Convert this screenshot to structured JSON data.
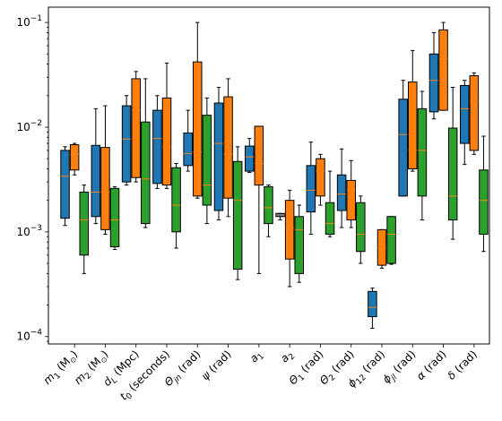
{
  "chart_data": {
    "type": "boxplot",
    "y_scale": "log",
    "ylim": [
      8.5e-05,
      0.14
    ],
    "y_ticks": [
      {
        "value": 0.0001,
        "base": "10",
        "exp": "−4"
      },
      {
        "value": 0.001,
        "base": "10",
        "exp": "−3"
      },
      {
        "value": 0.01,
        "base": "10",
        "exp": "−2"
      },
      {
        "value": 0.1,
        "base": "10",
        "exp": "−1"
      }
    ],
    "series": [
      {
        "color": "#1f77b4"
      },
      {
        "color": "#ff7f0e"
      },
      {
        "color": "#2ca02c"
      }
    ],
    "median_color": "#ff7f0e",
    "categories": [
      {
        "main": "m",
        "sub": "1",
        "unit": " (M",
        "unit_sub": "⊙",
        "unit_end": ")"
      },
      {
        "main": "m",
        "sub": "2",
        "unit": " (M",
        "unit_sub": "⊙",
        "unit_end": ")"
      },
      {
        "main": "d",
        "sub": "L",
        "unit": " (Mpc)",
        "unit_sub": "",
        "unit_end": ""
      },
      {
        "main": "t",
        "sub": "0",
        "unit": " (seconds)",
        "unit_sub": "",
        "unit_end": ""
      },
      {
        "main": "Θ",
        "sub": "jn",
        "unit": " (rad)",
        "unit_sub": "",
        "unit_end": ""
      },
      {
        "main": "ψ",
        "sub": "",
        "unit": " (rad)",
        "unit_sub": "",
        "unit_end": ""
      },
      {
        "main": "a",
        "sub": "1",
        "unit": "",
        "unit_sub": "",
        "unit_end": ""
      },
      {
        "main": "a",
        "sub": "2",
        "unit": "",
        "unit_sub": "",
        "unit_end": ""
      },
      {
        "main": "Θ",
        "sub": "1",
        "unit": " (rad)",
        "unit_sub": "",
        "unit_end": ""
      },
      {
        "main": "Θ",
        "sub": "2",
        "unit": " (rad)",
        "unit_sub": "",
        "unit_end": ""
      },
      {
        "main": "ϕ",
        "sub": "12",
        "unit": " (rad)",
        "unit_sub": "",
        "unit_end": ""
      },
      {
        "main": "ϕ",
        "sub": "jl",
        "unit": " (rad)",
        "unit_sub": "",
        "unit_end": ""
      },
      {
        "main": "α",
        "sub": "",
        "unit": " (rad)",
        "unit_sub": "",
        "unit_end": ""
      },
      {
        "main": "δ",
        "sub": "",
        "unit": " (rad)",
        "unit_sub": "",
        "unit_end": ""
      }
    ],
    "boxes": [
      [
        {
          "min": 0.00115,
          "q1": 0.00135,
          "median": 0.0034,
          "q3": 0.006,
          "max": 0.0065
        },
        {
          "min": 0.0035,
          "q1": 0.0039,
          "median": 0.0055,
          "q3": 0.0068,
          "max": 0.007
        },
        {
          "min": 0.0004,
          "q1": 0.0006,
          "median": 0.0013,
          "q3": 0.0024,
          "max": 0.0028
        }
      ],
      [
        {
          "min": 0.0012,
          "q1": 0.0014,
          "median": 0.0024,
          "q3": 0.0067,
          "max": 0.015
        },
        {
          "min": 0.00095,
          "q1": 0.00105,
          "median": 0.0024,
          "q3": 0.0064,
          "max": 0.016
        },
        {
          "min": 0.00068,
          "q1": 0.00072,
          "median": 0.0013,
          "q3": 0.0026,
          "max": 0.0027
        }
      ],
      [
        {
          "min": 0.0028,
          "q1": 0.003,
          "median": 0.0077,
          "q3": 0.016,
          "max": 0.02
        },
        {
          "min": 0.003,
          "q1": 0.0033,
          "median": 0.0145,
          "q3": 0.029,
          "max": 0.034
        },
        {
          "min": 0.0011,
          "q1": 0.0012,
          "median": 0.0032,
          "q3": 0.0112,
          "max": 0.029
        }
      ],
      [
        {
          "min": 0.0026,
          "q1": 0.0029,
          "median": 0.0078,
          "q3": 0.0145,
          "max": 0.02
        },
        {
          "min": 0.0026,
          "q1": 0.0028,
          "median": 0.0064,
          "q3": 0.019,
          "max": 0.041
        },
        {
          "min": 0.0007,
          "q1": 0.001,
          "median": 0.0018,
          "q3": 0.0041,
          "max": 0.0045
        }
      ],
      [
        {
          "min": 0.0038,
          "q1": 0.0043,
          "median": 0.0056,
          "q3": 0.0088,
          "max": 0.0145
        },
        {
          "min": 0.0021,
          "q1": 0.0022,
          "median": 0.0058,
          "q3": 0.042,
          "max": 0.1
        },
        {
          "min": 0.0012,
          "q1": 0.0018,
          "median": 0.0028,
          "q3": 0.013,
          "max": 0.019
        }
      ],
      [
        {
          "min": 0.0013,
          "q1": 0.0016,
          "median": 0.007,
          "q3": 0.017,
          "max": 0.024
        },
        {
          "min": 0.0014,
          "q1": 0.0021,
          "median": 0.0055,
          "q3": 0.0195,
          "max": 0.029
        },
        {
          "min": 0.00035,
          "q1": 0.00044,
          "median": 0.002,
          "q3": 0.0047,
          "max": 0.0065
        }
      ],
      [
        {
          "min": 0.0037,
          "q1": 0.0038,
          "median": 0.0052,
          "q3": 0.0066,
          "max": 0.0078
        },
        {
          "min": 0.0004,
          "q1": 0.0028,
          "median": 0.0045,
          "q3": 0.0102,
          "max": 0.0102
        },
        {
          "min": 0.0009,
          "q1": 0.0012,
          "median": 0.0017,
          "q3": 0.0027,
          "max": 0.0028
        }
      ],
      [
        {
          "min": 0.0013,
          "q1": 0.0014,
          "median": 0.00145,
          "q3": 0.0015,
          "max": 0.0015
        },
        {
          "min": 0.0003,
          "q1": 0.00055,
          "median": 0.0011,
          "q3": 0.002,
          "max": 0.0025
        },
        {
          "min": 0.00033,
          "q1": 0.0004,
          "median": 0.00105,
          "q3": 0.0014,
          "max": 0.0018
        }
      ],
      [
        {
          "min": 0.00095,
          "q1": 0.00155,
          "median": 0.0025,
          "q3": 0.0043,
          "max": 0.0072
        },
        {
          "min": 0.0018,
          "q1": 0.0022,
          "median": 0.0038,
          "q3": 0.005,
          "max": 0.0055
        },
        {
          "min": 0.0009,
          "q1": 0.00095,
          "median": 0.0012,
          "q3": 0.0019,
          "max": 0.0038
        }
      ],
      [
        {
          "min": 0.0011,
          "q1": 0.0016,
          "median": 0.0023,
          "q3": 0.0035,
          "max": 0.0062
        },
        {
          "min": 0.0011,
          "q1": 0.0013,
          "median": 0.0025,
          "q3": 0.0031,
          "max": 0.0048
        },
        {
          "min": 0.0005,
          "q1": 0.00065,
          "median": 0.00095,
          "q3": 0.0019,
          "max": 0.0022
        }
      ],
      [
        {
          "min": 0.00012,
          "q1": 0.000155,
          "median": 0.00019,
          "q3": 0.00027,
          "max": 0.00029
        },
        {
          "min": 0.00045,
          "q1": 0.00048,
          "median": 0.0007,
          "q3": 0.00105,
          "max": 0.00105
        },
        {
          "min": 0.00049,
          "q1": 0.0005,
          "median": 0.00095,
          "q3": 0.0014,
          "max": 0.0014
        }
      ],
      [
        {
          "min": 0.0022,
          "q1": 0.0022,
          "median": 0.0085,
          "q3": 0.0185,
          "max": 0.028
        },
        {
          "min": 0.0038,
          "q1": 0.004,
          "median": 0.006,
          "q3": 0.027,
          "max": 0.054
        },
        {
          "min": 0.0013,
          "q1": 0.0022,
          "median": 0.006,
          "q3": 0.015,
          "max": 0.022
        }
      ],
      [
        {
          "min": 0.012,
          "q1": 0.014,
          "median": 0.028,
          "q3": 0.05,
          "max": 0.08
        },
        {
          "min": 0.0145,
          "q1": 0.0145,
          "median": 0.045,
          "q3": 0.085,
          "max": 0.1
        },
        {
          "min": 0.00085,
          "q1": 0.0013,
          "median": 0.0022,
          "q3": 0.0098,
          "max": 0.024
        }
      ],
      [
        {
          "min": 0.0044,
          "q1": 0.007,
          "median": 0.015,
          "q3": 0.025,
          "max": 0.028
        },
        {
          "min": 0.0055,
          "q1": 0.006,
          "median": 0.018,
          "q3": 0.031,
          "max": 0.033
        },
        {
          "min": 0.00065,
          "q1": 0.00095,
          "median": 0.002,
          "q3": 0.0039,
          "max": 0.0082
        }
      ]
    ]
  }
}
